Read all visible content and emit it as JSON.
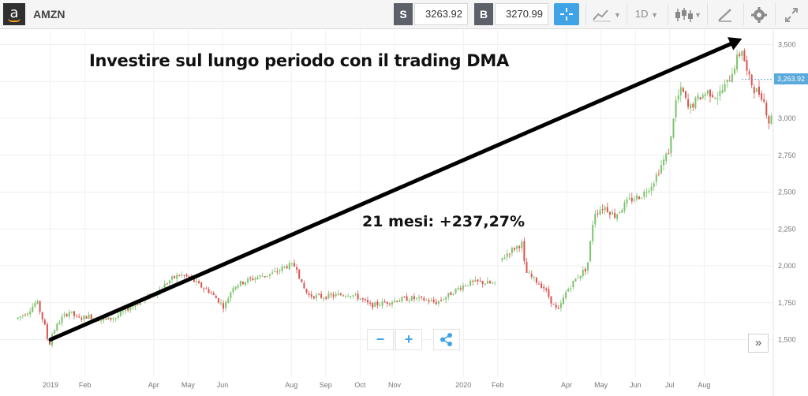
{
  "toolbar": {
    "logo_letter": "a",
    "symbol": "AMZN",
    "sell_label": "S",
    "sell_price": "3263.92",
    "buy_label": "B",
    "buy_price": "3270.99",
    "timeframe": "1D",
    "icons": [
      "crosshair-icon",
      "line-chart-icon",
      "candlestick-icon",
      "draw-icon",
      "settings-icon",
      "fullscreen-icon"
    ]
  },
  "annotations": {
    "title": "Investire sul lungo periodo con il trading DMA",
    "gain": "21 mesi: +237,27%"
  },
  "zoom": {
    "minus": "−",
    "plus": "+"
  },
  "expand": "»",
  "colors": {
    "up": "#7cc36b",
    "down": "#d9534f",
    "accent": "#3fa3e6",
    "arrow": "#000000"
  },
  "chart_data": {
    "type": "candlestick",
    "title": "Investire sul lungo periodo con il trading DMA",
    "current_price_label": "3,263.92",
    "y_ticks": [
      1500,
      1750,
      2000,
      2250,
      2500,
      2750,
      3000,
      3250,
      3500
    ],
    "y_tick_labels": [
      "1,500",
      "1,750",
      "2,000",
      "2,250",
      "2,500",
      "2,750",
      "3,000",
      "3,250",
      "3,500"
    ],
    "ylim": [
      1340,
      3580
    ],
    "x_ticks": [
      {
        "label": "2019",
        "month": 12
      },
      {
        "label": "Feb",
        "month": 13
      },
      {
        "label": "Apr",
        "month": 15
      },
      {
        "label": "May",
        "month": 16
      },
      {
        "label": "Jun",
        "month": 17
      },
      {
        "label": "Aug",
        "month": 19
      },
      {
        "label": "Sep",
        "month": 20
      },
      {
        "label": "Oct",
        "month": 21
      },
      {
        "label": "Nov",
        "month": 22
      },
      {
        "label": "2020",
        "month": 24
      },
      {
        "label": "Feb",
        "month": 25
      },
      {
        "label": "Apr",
        "month": 27
      },
      {
        "label": "May",
        "month": 28
      },
      {
        "label": "Jun",
        "month": 29
      },
      {
        "label": "Jul",
        "month": 30
      },
      {
        "label": "Aug",
        "month": 31
      }
    ],
    "xlim": [
      11,
      33.55
    ],
    "price_path": [
      [
        11.0,
        1640
      ],
      [
        11.35,
        1690
      ],
      [
        11.6,
        1760
      ],
      [
        11.85,
        1580
      ],
      [
        11.95,
        1450
      ],
      [
        12.05,
        1540
      ],
      [
        12.3,
        1640
      ],
      [
        12.55,
        1690
      ],
      [
        12.8,
        1640
      ],
      [
        13.1,
        1660
      ],
      [
        13.5,
        1630
      ],
      [
        13.9,
        1650
      ],
      [
        14.3,
        1720
      ],
      [
        14.7,
        1770
      ],
      [
        15.1,
        1820
      ],
      [
        15.45,
        1900
      ],
      [
        15.75,
        1940
      ],
      [
        16.05,
        1920
      ],
      [
        16.3,
        1870
      ],
      [
        16.6,
        1830
      ],
      [
        16.9,
        1760
      ],
      [
        17.05,
        1720
      ],
      [
        17.3,
        1860
      ],
      [
        17.7,
        1900
      ],
      [
        18.1,
        1930
      ],
      [
        18.5,
        1950
      ],
      [
        18.85,
        2000
      ],
      [
        19.15,
        2000
      ],
      [
        19.3,
        1870
      ],
      [
        19.5,
        1800
      ],
      [
        19.9,
        1790
      ],
      [
        20.3,
        1800
      ],
      [
        20.7,
        1810
      ],
      [
        21.0,
        1780
      ],
      [
        21.3,
        1730
      ],
      [
        21.7,
        1750
      ],
      [
        22.1,
        1770
      ],
      [
        22.5,
        1780
      ],
      [
        22.9,
        1770
      ],
      [
        23.2,
        1750
      ],
      [
        23.5,
        1790
      ],
      [
        23.8,
        1840
      ],
      [
        24.1,
        1880
      ],
      [
        24.45,
        1890
      ],
      [
        24.8,
        1880
      ],
      [
        25.0,
        1870
      ],
      [
        25.05,
        2030
      ],
      [
        25.3,
        2090
      ],
      [
        25.55,
        2130
      ],
      [
        25.7,
        2150
      ],
      [
        25.8,
        1960
      ],
      [
        26.1,
        1900
      ],
      [
        26.35,
        1850
      ],
      [
        26.6,
        1740
      ],
      [
        26.75,
        1690
      ],
      [
        27.0,
        1830
      ],
      [
        27.3,
        1920
      ],
      [
        27.6,
        1990
      ],
      [
        27.8,
        2360
      ],
      [
        28.1,
        2400
      ],
      [
        28.4,
        2340
      ],
      [
        28.8,
        2440
      ],
      [
        29.2,
        2480
      ],
      [
        29.5,
        2560
      ],
      [
        29.75,
        2680
      ],
      [
        30.0,
        2790
      ],
      [
        30.15,
        3100
      ],
      [
        30.35,
        3200
      ],
      [
        30.55,
        3060
      ],
      [
        30.8,
        3130
      ],
      [
        31.1,
        3180
      ],
      [
        31.4,
        3150
      ],
      [
        31.7,
        3250
      ],
      [
        31.95,
        3400
      ],
      [
        32.1,
        3470
      ],
      [
        32.25,
        3300
      ],
      [
        32.45,
        3200
      ],
      [
        32.7,
        3150
      ],
      [
        32.9,
        2960
      ],
      [
        33.05,
        3090
      ],
      [
        33.3,
        3140
      ],
      [
        33.55,
        3030
      ]
    ],
    "gap": [
      25.0,
      25.05
    ],
    "arrow": {
      "from": {
        "month": 12.0,
        "price": 1500
      },
      "to": {
        "month": 32.1,
        "price": 3540
      }
    }
  }
}
